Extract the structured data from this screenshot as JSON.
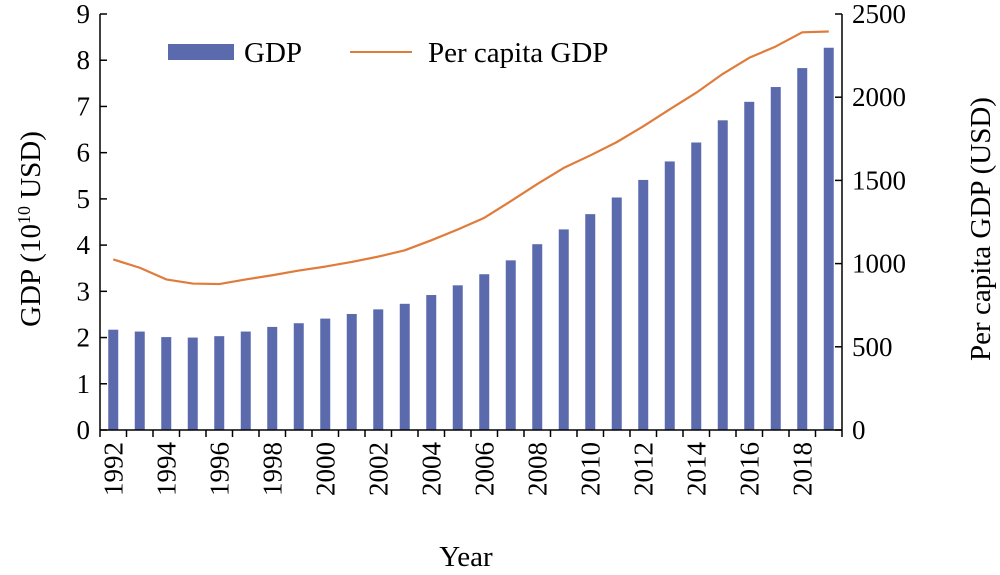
{
  "chart_data": {
    "type": "bar+line",
    "x_label": "Year",
    "y_left_label_main": "GDP (10",
    "y_left_label_sup": "10",
    "y_left_label_end": " USD)",
    "y_right_label": "Per capita GDP (USD)",
    "y_left_range": [
      0,
      9
    ],
    "y_right_range": [
      0,
      2500
    ],
    "y_left_ticks": [
      "0",
      "1",
      "2",
      "3",
      "4",
      "5",
      "6",
      "7",
      "8",
      "9"
    ],
    "y_right_ticks": [
      "0",
      "500",
      "1000",
      "1500",
      "2000",
      "2500"
    ],
    "x_tick_labels": [
      "1992",
      "1994",
      "1996",
      "1998",
      "2000",
      "2002",
      "2004",
      "2006",
      "2008",
      "2010",
      "2012",
      "2014",
      "2016",
      "2018"
    ],
    "years": [
      1992,
      1993,
      1994,
      1995,
      1996,
      1997,
      1998,
      1999,
      2000,
      2001,
      2002,
      2003,
      2004,
      2005,
      2006,
      2007,
      2008,
      2009,
      2010,
      2011,
      2012,
      2013,
      2014,
      2015,
      2016,
      2017,
      2018,
      2019
    ],
    "series": [
      {
        "name": "GDP",
        "kind": "bar",
        "axis": "left",
        "color": "#5b6aad",
        "values": [
          2.17,
          2.13,
          2.01,
          2.0,
          2.03,
          2.13,
          2.23,
          2.31,
          2.41,
          2.51,
          2.61,
          2.73,
          2.92,
          3.13,
          3.37,
          3.67,
          4.02,
          4.34,
          4.67,
          5.03,
          5.41,
          5.81,
          6.22,
          6.7,
          7.1,
          7.42,
          7.83,
          8.27
        ]
      },
      {
        "name": "Per capita GDP",
        "kind": "line",
        "axis": "right",
        "color": "#e07b3a",
        "values": [
          1025,
          975,
          905,
          880,
          877,
          905,
          930,
          958,
          982,
          1010,
          1042,
          1080,
          1140,
          1205,
          1275,
          1375,
          1478,
          1575,
          1650,
          1730,
          1825,
          1927,
          2027,
          2140,
          2237,
          2305,
          2390,
          2395
        ]
      }
    ],
    "legend_position": "top-left",
    "grid": false
  }
}
